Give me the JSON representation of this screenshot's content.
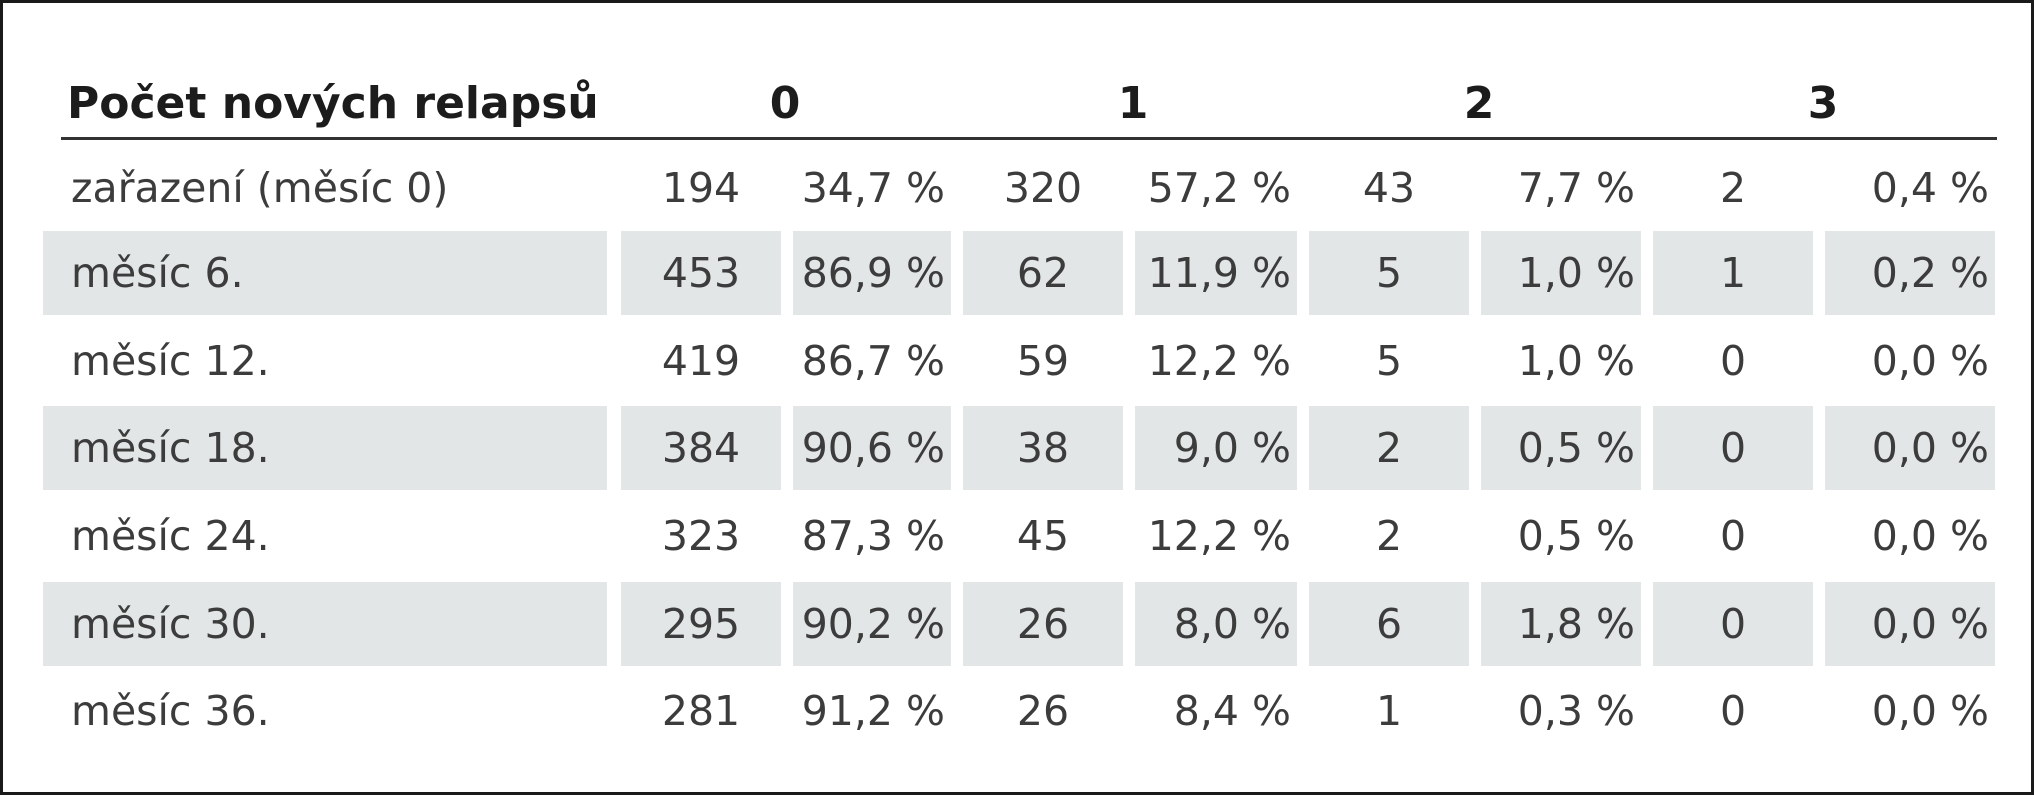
{
  "header": {
    "label": "Počet nových relapsů",
    "groups": [
      "0",
      "1",
      "2",
      "3"
    ]
  },
  "rows": [
    {
      "label": "zařazení (měsíc 0)",
      "cells": [
        "194",
        "34,7 %",
        "320",
        "57,2 %",
        "43",
        "7,7 %",
        "2",
        "0,4 %"
      ]
    },
    {
      "label": "měsíc 6.",
      "cells": [
        "453",
        "86,9 %",
        "62",
        "11,9 %",
        "5",
        "1,0 %",
        "1",
        "0,2 %"
      ]
    },
    {
      "label": "měsíc 12.",
      "cells": [
        "419",
        "86,7 %",
        "59",
        "12,2 %",
        "5",
        "1,0 %",
        "0",
        "0,0 %"
      ]
    },
    {
      "label": "měsíc 18.",
      "cells": [
        "384",
        "90,6 %",
        "38",
        "9,0 %",
        "2",
        "0,5 %",
        "0",
        "0,0 %"
      ]
    },
    {
      "label": "měsíc 24.",
      "cells": [
        "323",
        "87,3 %",
        "45",
        "12,2 %",
        "2",
        "0,5 %",
        "0",
        "0,0 %"
      ]
    },
    {
      "label": "měsíc 30.",
      "cells": [
        "295",
        "90,2 %",
        "26",
        "8,0 %",
        "6",
        "1,8 %",
        "0",
        "0,0 %"
      ]
    },
    {
      "label": "měsíc 36.",
      "cells": [
        "281",
        "91,2 %",
        "26",
        "8,4 %",
        "1",
        "0,3 %",
        "0",
        "0,0 %"
      ]
    }
  ],
  "colors": {
    "row_shade": "#e2e6e6",
    "text": "#3c3c3c",
    "rule": "#333333"
  }
}
